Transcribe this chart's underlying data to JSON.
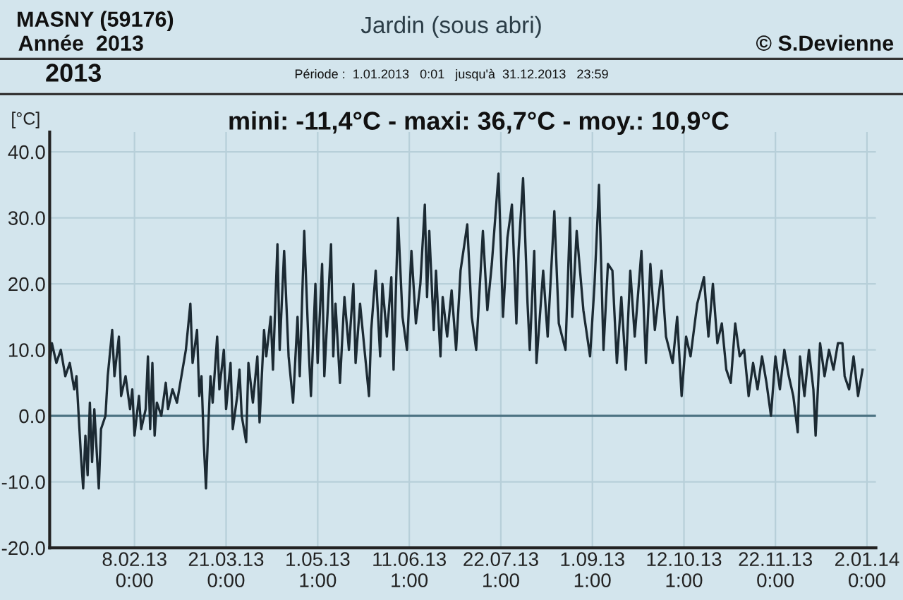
{
  "chart_data": {
    "type": "line",
    "title": "Jardin (sous abri)",
    "subtitle": "mini: -11,4°C - maxi: 36,7°C - moy.: 10,9°C",
    "ylabel": "[°C]",
    "annotations": [
      "MASNY (59176)",
      "Année  2013",
      "© S.Devienne",
      "2013",
      "Période :  1.01.2013   0:01   jusqu'à  31.12.2013   23:59"
    ],
    "x": [
      "2013-01-01",
      "2013-01-02",
      "2013-01-04",
      "2013-01-06",
      "2013-01-08",
      "2013-01-10",
      "2013-01-12",
      "2013-01-13",
      "2013-01-14",
      "2013-01-15",
      "2013-01-16",
      "2013-01-17",
      "2013-01-18",
      "2013-01-19",
      "2013-01-20",
      "2013-01-21",
      "2013-01-22",
      "2013-01-23",
      "2013-01-24",
      "2013-01-26",
      "2013-01-27",
      "2013-01-29",
      "2013-01-30",
      "2013-01-31",
      "2013-02-01",
      "2013-02-02",
      "2013-02-04",
      "2013-02-06",
      "2013-02-07",
      "2013-02-08",
      "2013-02-10",
      "2013-02-11",
      "2013-02-13",
      "2013-02-14",
      "2013-02-15",
      "2013-02-16",
      "2013-02-17",
      "2013-02-18",
      "2013-02-20",
      "2013-02-22",
      "2013-02-23",
      "2013-02-25",
      "2013-02-27",
      "2013-03-01",
      "2013-03-03",
      "2013-03-05",
      "2013-03-06",
      "2013-03-08",
      "2013-03-09",
      "2013-03-10",
      "2013-03-11",
      "2013-03-12",
      "2013-03-13",
      "2013-03-14",
      "2013-03-15",
      "2013-03-17",
      "2013-03-18",
      "2013-03-20",
      "2013-03-21",
      "2013-03-23",
      "2013-03-24",
      "2013-03-26",
      "2013-03-27",
      "2013-03-28",
      "2013-03-30",
      "2013-03-31",
      "2013-04-02",
      "2013-04-04",
      "2013-04-05",
      "2013-04-07",
      "2013-04-08",
      "2013-04-10",
      "2013-04-11",
      "2013-04-13",
      "2013-04-14",
      "2013-04-16",
      "2013-04-18",
      "2013-04-20",
      "2013-04-22",
      "2013-04-23",
      "2013-04-25",
      "2013-04-27",
      "2013-04-28",
      "2013-04-30",
      "2013-05-01",
      "2013-05-03",
      "2013-05-04",
      "2013-05-07",
      "2013-05-08",
      "2013-05-09",
      "2013-05-11",
      "2013-05-13",
      "2013-05-15",
      "2013-05-17",
      "2013-05-18",
      "2013-05-20",
      "2013-05-22",
      "2013-05-24",
      "2013-05-25",
      "2013-05-27",
      "2013-05-29",
      "2013-05-30",
      "2013-06-01",
      "2013-06-03",
      "2013-06-04",
      "2013-06-06",
      "2013-06-08",
      "2013-06-10",
      "2013-06-12",
      "2013-06-14",
      "2013-06-16",
      "2013-06-18",
      "2013-06-19",
      "2013-06-20",
      "2013-06-22",
      "2013-06-23",
      "2013-06-25",
      "2013-06-26",
      "2013-06-28",
      "2013-06-30",
      "2013-07-02",
      "2013-07-04",
      "2013-07-07",
      "2013-07-09",
      "2013-07-11",
      "2013-07-14",
      "2013-07-16",
      "2013-07-18",
      "2013-07-21",
      "2013-07-23",
      "2013-07-25",
      "2013-07-27",
      "2013-07-29",
      "2013-07-30",
      "2013-08-01",
      "2013-08-03",
      "2013-08-04",
      "2013-08-06",
      "2013-08-07",
      "2013-08-10",
      "2013-08-12",
      "2013-08-15",
      "2013-08-17",
      "2013-08-20",
      "2013-08-22",
      "2013-08-23",
      "2013-08-25",
      "2013-08-28",
      "2013-08-31",
      "2013-09-02",
      "2013-09-04",
      "2013-09-06",
      "2013-09-08",
      "2013-09-10",
      "2013-09-12",
      "2013-09-14",
      "2013-09-16",
      "2013-09-18",
      "2013-09-20",
      "2013-09-23",
      "2013-09-25",
      "2013-09-27",
      "2013-09-29",
      "2013-10-02",
      "2013-10-04",
      "2013-10-07",
      "2013-10-09",
      "2013-10-11",
      "2013-10-13",
      "2013-10-15",
      "2013-10-18",
      "2013-10-21",
      "2013-10-23",
      "2013-10-25",
      "2013-10-27",
      "2013-10-29",
      "2013-10-31",
      "2013-11-02",
      "2013-11-04",
      "2013-11-06",
      "2013-11-08",
      "2013-11-10",
      "2013-11-12",
      "2013-11-14",
      "2013-11-16",
      "2013-11-18",
      "2013-11-20",
      "2013-11-22",
      "2013-11-24",
      "2013-11-26",
      "2013-11-28",
      "2013-11-30",
      "2013-12-02",
      "2013-12-03",
      "2013-12-05",
      "2013-12-07",
      "2013-12-09",
      "2013-12-10",
      "2013-12-12",
      "2013-12-14",
      "2013-12-16",
      "2013-12-18",
      "2013-12-20",
      "2013-12-22",
      "2013-12-23",
      "2013-12-25",
      "2013-12-27",
      "2013-12-29",
      "2013-12-31"
    ],
    "series": [
      {
        "color": "#1c2a33",
        "values": [
          8,
          11,
          8,
          10,
          6,
          8,
          4,
          6,
          0,
          -6,
          -11,
          -3,
          -9,
          2,
          -7,
          1,
          -5,
          -11,
          -2,
          0,
          6,
          13,
          6,
          9,
          12,
          3,
          6,
          1,
          4,
          -3,
          3,
          -2,
          1,
          9,
          -2,
          8,
          -3,
          2,
          0,
          5,
          1,
          4,
          2,
          6,
          10,
          17,
          8,
          13,
          3,
          6,
          -4,
          -11,
          -2,
          6,
          2,
          12,
          4,
          10,
          1,
          8,
          -2,
          3,
          7,
          0,
          -4,
          8,
          2,
          9,
          -1,
          13,
          9,
          15,
          7,
          26,
          10,
          25,
          9,
          2,
          15,
          6,
          28,
          10,
          3,
          20,
          8,
          23,
          6,
          26,
          9,
          17,
          5,
          18,
          10,
          20,
          8,
          17,
          10,
          3,
          13,
          22,
          9,
          20,
          12,
          21,
          7,
          30,
          15,
          10,
          25,
          14,
          20,
          32,
          18,
          28,
          13,
          22,
          9,
          18,
          12,
          19,
          10,
          22,
          29,
          15,
          10,
          28,
          16,
          23,
          36.7,
          15,
          27,
          32,
          14,
          25,
          36,
          17,
          10,
          25,
          8,
          22,
          12,
          31,
          14,
          10,
          30,
          15,
          28,
          16,
          9,
          20,
          35,
          10,
          23,
          22,
          8,
          18,
          7,
          22,
          12,
          25,
          8,
          23,
          13,
          22,
          12,
          8,
          15,
          3,
          12,
          9,
          17,
          21,
          12,
          20,
          11,
          14,
          7,
          5,
          14,
          9,
          10,
          3,
          8,
          4,
          9,
          5,
          0,
          9,
          4,
          10,
          6,
          3,
          -2.5,
          9,
          3,
          10,
          4,
          -3,
          11,
          6,
          10,
          7,
          11,
          11,
          6,
          4,
          9,
          3,
          7
        ]
      }
    ],
    "xlim": [
      "2013-01-01",
      "2014-01-06"
    ],
    "xticks": [
      {
        "value": "2013-02-08T00:00",
        "label": "8.02.13\n0:00"
      },
      {
        "value": "2013-03-21T00:00",
        "label": "21.03.13\n0:00"
      },
      {
        "value": "2013-05-01T01:00",
        "label": "1.05.13\n1:00"
      },
      {
        "value": "2013-06-11T01:00",
        "label": "11.06.13\n1:00"
      },
      {
        "value": "2013-07-22T01:00",
        "label": "22.07.13\n1:00"
      },
      {
        "value": "2013-09-01T01:00",
        "label": "1.09.13\n1:00"
      },
      {
        "value": "2013-10-12T01:00",
        "label": "12.10.13\n1:00"
      },
      {
        "value": "2013-11-22T00:00",
        "label": "22.11.13\n0:00"
      },
      {
        "value": "2014-01-02T00:00",
        "label": "2.01.14\n0:00"
      }
    ],
    "ylim": [
      -20,
      43
    ],
    "yticks": [
      {
        "value": -20,
        "label": "-20.0"
      },
      {
        "value": -10,
        "label": "-10.0"
      },
      {
        "value": 0,
        "label": "0.0"
      },
      {
        "value": 10,
        "label": "10.0"
      },
      {
        "value": 20,
        "label": "20.0"
      },
      {
        "value": 30,
        "label": "30.0"
      },
      {
        "value": 40,
        "label": "40.0"
      }
    ],
    "ref_lines": [
      {
        "axis": "y",
        "value": 0,
        "color": "#4d7383"
      }
    ],
    "grid": true,
    "line_style": "solid",
    "marker": "none",
    "legend": false
  }
}
